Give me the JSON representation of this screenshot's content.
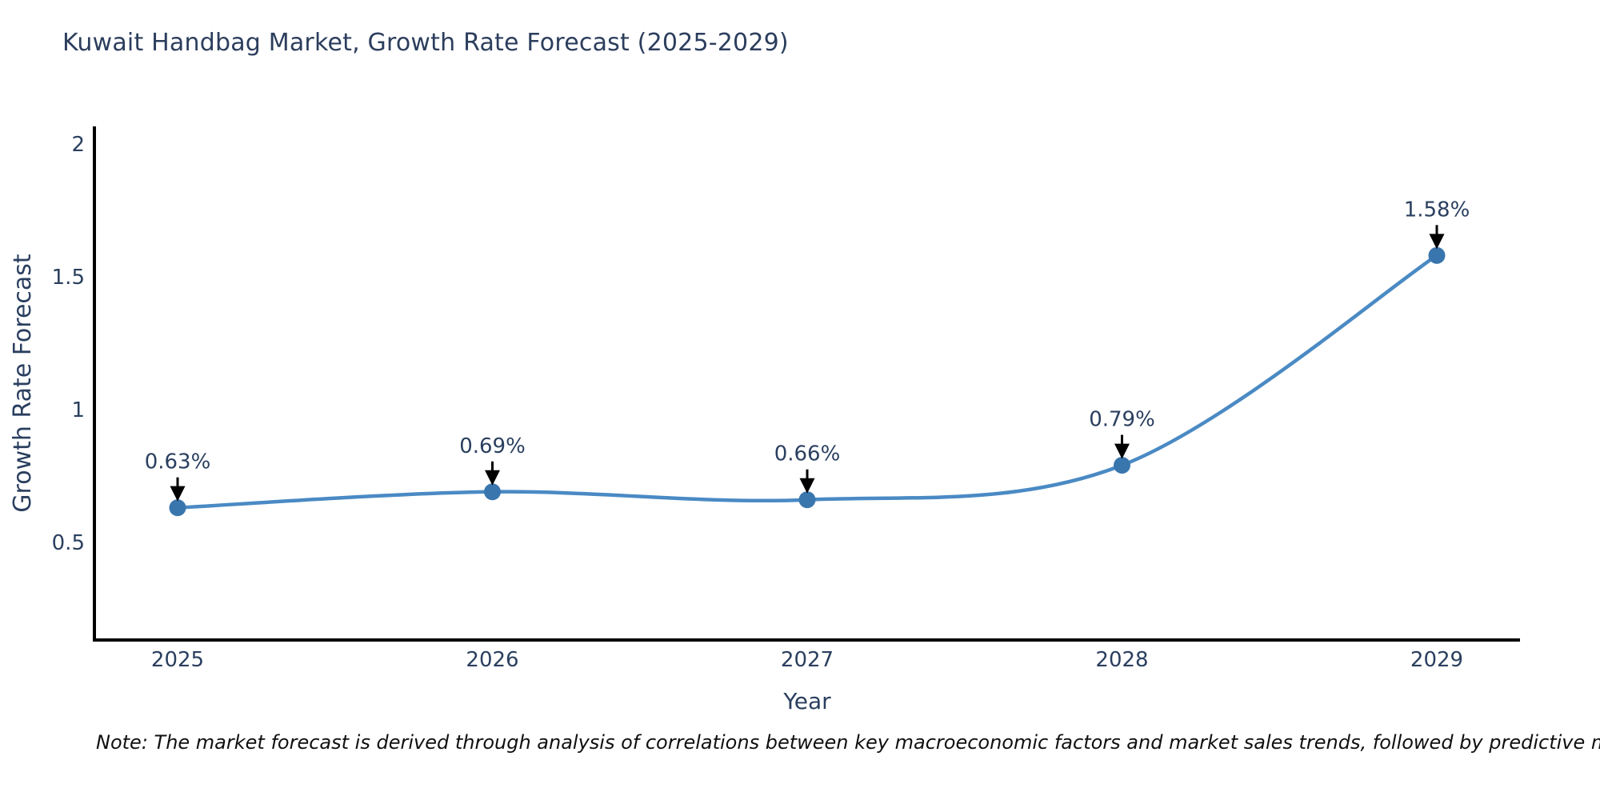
{
  "title": "Kuwait Handbag Market, Growth Rate Forecast (2025-2029)",
  "note": "Note: The market forecast is derived through analysis of correlations between key macroeconomic factors and market sales trends, followed by predictive modeling to project future sales",
  "chart_data": {
    "type": "line",
    "title": "Kuwait Handbag Market, Growth Rate Forecast (2025-2029)",
    "xlabel": "Year",
    "ylabel": "Growth Rate Forecast",
    "x": [
      "2025",
      "2026",
      "2027",
      "2028",
      "2029"
    ],
    "series": [
      {
        "name": "Growth Rate Forecast",
        "values": [
          0.63,
          0.69,
          0.66,
          0.79,
          1.58
        ],
        "point_labels": [
          "0.63%",
          "0.69%",
          "0.66%",
          "0.79%",
          "1.58%"
        ]
      }
    ],
    "yticks": [
      0.5,
      1,
      1.5,
      2
    ],
    "ylim": [
      0.132,
      2.066
    ],
    "line_shape": "spline",
    "grid": false,
    "legend_position": "none",
    "colors": {
      "line": "#4a8ac4",
      "marker": "#3a76ae",
      "axis": "#000000",
      "text": "#2a3f5f",
      "annotation_text": "#2a3f5f",
      "arrow": "#000000",
      "note_text": "#101010"
    }
  }
}
